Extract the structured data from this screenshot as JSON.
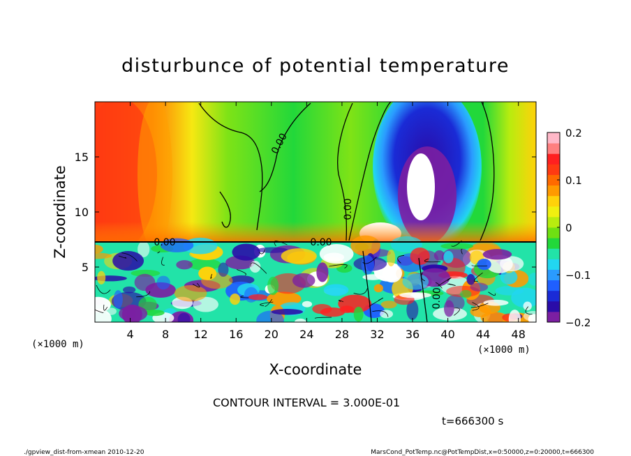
{
  "chart_data": {
    "type": "heatmap",
    "title": "disturbunce of potential temperature",
    "xlabel": "X-coordinate",
    "ylabel": "Z-coordinate",
    "x_unit": "(×1000 m)",
    "y_unit": "(×1000 m)",
    "xlim": [
      0,
      50
    ],
    "ylim": [
      0,
      20
    ],
    "x_ticks": [
      4,
      8,
      12,
      16,
      20,
      24,
      28,
      32,
      36,
      40,
      44,
      48
    ],
    "y_ticks": [
      5,
      10,
      15
    ],
    "colorbar": {
      "min": -0.2,
      "max": 0.2,
      "ticks": [
        -0.2,
        -0.1,
        0,
        0.1,
        0.2
      ],
      "tick_labels": [
        "−0.2",
        "−0.1",
        "0",
        "0.1",
        "0.2"
      ],
      "colors": [
        "#7b1fa2",
        "#2a0ca8",
        "#1a2bd6",
        "#1f5fff",
        "#2a9bff",
        "#22d6f0",
        "#22e3a8",
        "#22d83a",
        "#6fe012",
        "#b8ec0f",
        "#f0f010",
        "#ffd20a",
        "#ff9a00",
        "#ff6a00",
        "#ff3a12",
        "#ff2020",
        "#ff7f7f",
        "#ffb8c8"
      ]
    },
    "contour_labels": [
      "0.00",
      "0.00",
      "0.00",
      "0.00",
      "0.00"
    ],
    "features": [
      {
        "kind": "warm-region",
        "x": [
          0,
          10
        ],
        "z": [
          8,
          20
        ],
        "value": 0.14
      },
      {
        "kind": "cold-anomaly",
        "x": [
          30,
          42
        ],
        "z": [
          7.5,
          19
        ],
        "value": -0.2
      },
      {
        "kind": "turbulent-layer",
        "x": [
          0,
          50
        ],
        "z": [
          0,
          7.3
        ]
      }
    ]
  },
  "contour_interval": "CONTOUR INTERVAL = 3.000E-01",
  "time_label": "t=666300 s",
  "footer_left": "./gpview_dist-from-xmean  2010-12-20",
  "footer_right": "MarsCond_PotTemp.nc@PotTempDist,x=0:50000,z=0:20000,t=666300"
}
